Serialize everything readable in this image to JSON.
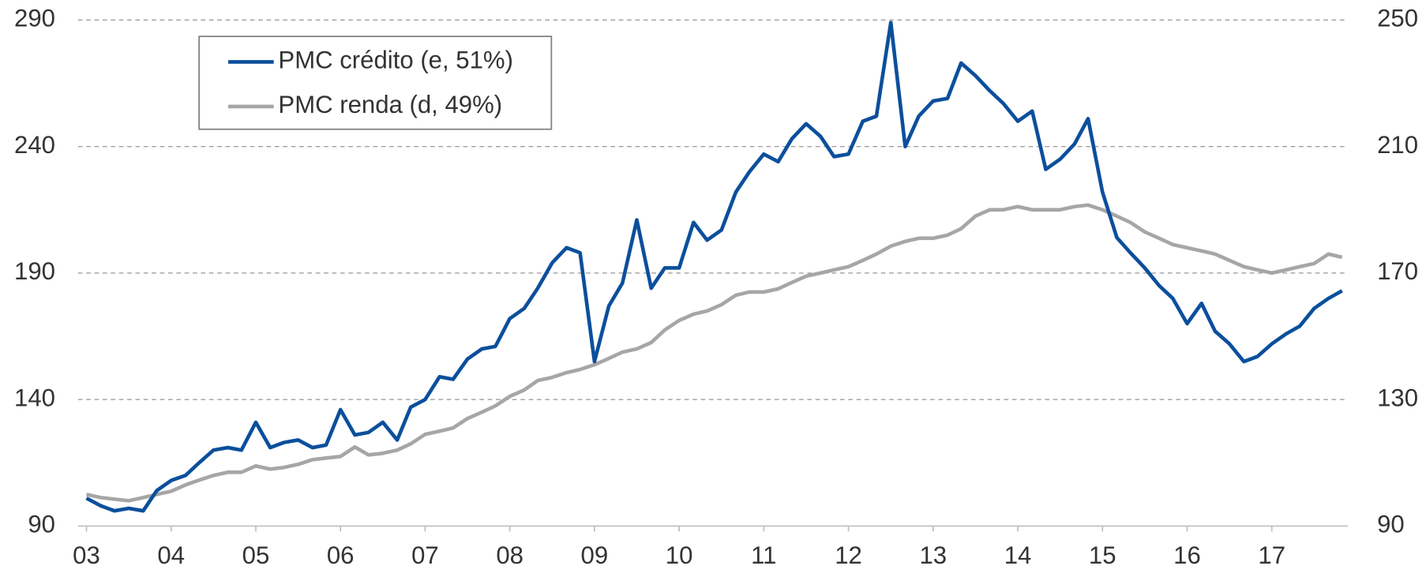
{
  "chart_data": {
    "type": "line",
    "x": [
      3,
      3.17,
      3.33,
      3.5,
      3.67,
      3.83,
      4,
      4.17,
      4.33,
      4.5,
      4.67,
      4.83,
      5,
      5.17,
      5.33,
      5.5,
      5.67,
      5.83,
      6,
      6.17,
      6.33,
      6.5,
      6.67,
      6.83,
      7,
      7.17,
      7.33,
      7.5,
      7.67,
      7.83,
      8,
      8.17,
      8.33,
      8.5,
      8.67,
      8.83,
      9,
      9.17,
      9.33,
      9.5,
      9.67,
      9.83,
      10,
      10.17,
      10.33,
      10.5,
      10.67,
      10.83,
      11,
      11.17,
      11.33,
      11.5,
      11.67,
      11.83,
      12,
      12.17,
      12.33,
      12.5,
      12.67,
      12.83,
      13,
      13.17,
      13.33,
      13.5,
      13.67,
      13.83,
      14,
      14.17,
      14.33,
      14.5,
      14.67,
      14.83,
      15,
      15.17,
      15.33,
      15.5,
      15.67,
      15.83,
      16,
      16.17,
      16.33,
      16.5,
      16.67,
      16.83,
      17,
      17.17,
      17.33,
      17.5,
      17.67,
      17.83
    ],
    "series": [
      {
        "name": "PMC crédito (e, 51%)",
        "color": "#0b4f9c",
        "axis": "y",
        "values": [
          101,
          98,
          96,
          97,
          96,
          104,
          108,
          110,
          115,
          120,
          121,
          120,
          131,
          121,
          123,
          124,
          121,
          122,
          136,
          126,
          127,
          131,
          124,
          137,
          140,
          149,
          148,
          156,
          160,
          161,
          172,
          176,
          184,
          194,
          200,
          198,
          155,
          177,
          186,
          211,
          184,
          192,
          192,
          210,
          203,
          207,
          222,
          230,
          237,
          234,
          243,
          249,
          244,
          236,
          237,
          250,
          252,
          289,
          240,
          252,
          258,
          259,
          273,
          268,
          262,
          257,
          250,
          254,
          231,
          235,
          241,
          251,
          222,
          204,
          198,
          192,
          185,
          180,
          170,
          178,
          167,
          162,
          155,
          157,
          162,
          166,
          169,
          176,
          180,
          183
        ]
      },
      {
        "name": "PMC renda (d, 49%)",
        "color": "#a6a6a6",
        "axis": "y2",
        "values": [
          100,
          99,
          98.5,
          98,
          99,
          100,
          101,
          103,
          104.5,
          106,
          107,
          107,
          109,
          108,
          108.5,
          109.5,
          111,
          111.5,
          112,
          115,
          112.5,
          113,
          114,
          116,
          119,
          120,
          121,
          124,
          126,
          128,
          131,
          133,
          136,
          137,
          138.5,
          139.5,
          141,
          143,
          145,
          146,
          148,
          152,
          155,
          157,
          158,
          160,
          163,
          164,
          164,
          165,
          167,
          169,
          170,
          171,
          172,
          174,
          176,
          178.5,
          180,
          181,
          181,
          182,
          184,
          188,
          190,
          190,
          191,
          190,
          190,
          190,
          191,
          191.5,
          190,
          188,
          186,
          183,
          181,
          179,
          178,
          177,
          176,
          174,
          172,
          171,
          170,
          171,
          172,
          173,
          176,
          175
        ]
      }
    ],
    "xlim": [
      2.9,
      17.9
    ],
    "xticks": [
      {
        "value": 3,
        "label": "03"
      },
      {
        "value": 4,
        "label": "04"
      },
      {
        "value": 5,
        "label": "05"
      },
      {
        "value": 6,
        "label": "06"
      },
      {
        "value": 7,
        "label": "07"
      },
      {
        "value": 8,
        "label": "08"
      },
      {
        "value": 9,
        "label": "09"
      },
      10,
      11,
      12,
      13,
      14,
      15,
      16,
      17
    ],
    "ylim": [
      90,
      290
    ],
    "yticks": [
      90,
      140,
      190,
      240,
      290
    ],
    "y2lim": [
      90,
      250
    ],
    "y2ticks": [
      90,
      130,
      170,
      210,
      250
    ],
    "grid": true,
    "legend": "upper left"
  }
}
